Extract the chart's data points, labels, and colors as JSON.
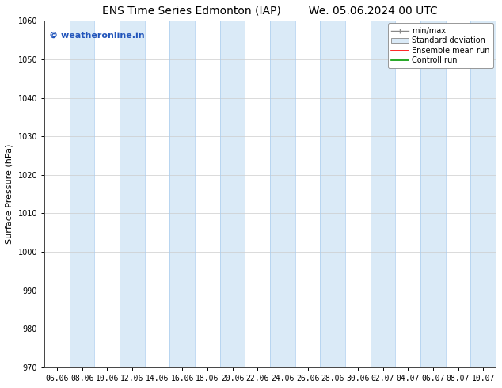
{
  "title_left": "ENS Time Series Edmonton (IAP)",
  "title_right": "We. 05.06.2024 00 UTC",
  "ylabel": "Surface Pressure (hPa)",
  "ylim": [
    970,
    1060
  ],
  "yticks": [
    970,
    980,
    990,
    1000,
    1010,
    1020,
    1030,
    1040,
    1050,
    1060
  ],
  "xlabel_ticks": [
    "06.06",
    "08.06",
    "10.06",
    "12.06",
    "14.06",
    "16.06",
    "18.06",
    "20.06",
    "22.06",
    "24.06",
    "26.06",
    "28.06",
    "30.06",
    "02.07",
    "04.07",
    "06.07",
    "08.07",
    "10.07"
  ],
  "background_color": "#ffffff",
  "plot_bg_color": "#ffffff",
  "shaded_band_color": "#daeaf7",
  "shaded_band_edge_color": "#aaccee",
  "watermark_text": "© weatheronline.in",
  "watermark_color": "#2255bb",
  "legend_entries": [
    "min/max",
    "Standard deviation",
    "Ensemble mean run",
    "Controll run"
  ],
  "shaded_columns_indices": [
    1,
    3,
    5,
    7,
    9,
    11,
    13,
    15,
    17
  ],
  "title_fontsize": 10,
  "axis_label_fontsize": 8,
  "tick_fontsize": 7,
  "watermark_fontsize": 8,
  "legend_fontsize": 7
}
